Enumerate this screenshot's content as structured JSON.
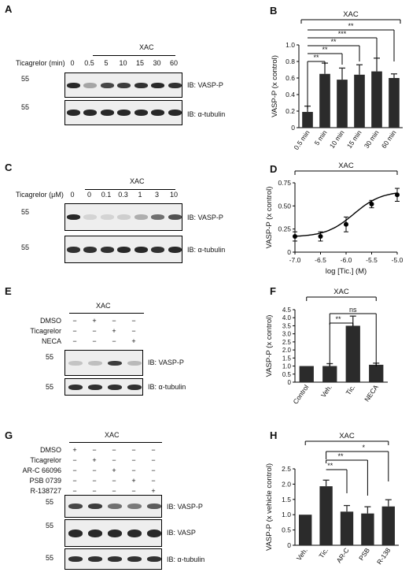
{
  "panelA": {
    "letter": "A",
    "treatment": "XAC",
    "row_label": "Ticagrelor (min)",
    "lanes": [
      "0",
      "0.5",
      "5",
      "10",
      "15",
      "30",
      "60"
    ],
    "mw": [
      "55",
      "55"
    ],
    "blots": [
      "IB: VASP-P",
      "IB: α-tubulin"
    ]
  },
  "panelC": {
    "letter": "C",
    "treatment": "XAC",
    "row_label": "Ticagrelor (μM)",
    "lanes": [
      "0",
      "0",
      "0.1",
      "0.3",
      "1",
      "3",
      "10"
    ],
    "mw": [
      "55",
      "55"
    ],
    "blots": [
      "IB: VASP-P",
      "IB: α-tubulin"
    ]
  },
  "panelE": {
    "letter": "E",
    "treatment": "XAC",
    "rows": [
      {
        "label": "DMSO",
        "signs": [
          "−",
          "+",
          "−",
          "−"
        ]
      },
      {
        "label": "Ticagrelor",
        "signs": [
          "−",
          "−",
          "+",
          "−"
        ]
      },
      {
        "label": "NECA",
        "signs": [
          "−",
          "−",
          "−",
          "+"
        ]
      }
    ],
    "mw": [
      "55",
      "55"
    ],
    "blots": [
      "IB: VASP-P",
      "IB: α-tubulin"
    ]
  },
  "panelG": {
    "letter": "G",
    "treatment": "XAC",
    "rows": [
      {
        "label": "DMSO",
        "signs": [
          "+",
          "−",
          "−",
          "−",
          "−"
        ]
      },
      {
        "label": "Ticagrelor",
        "signs": [
          "−",
          "+",
          "−",
          "−",
          "−"
        ]
      },
      {
        "label": "AR-C 66096",
        "signs": [
          "−",
          "−",
          "+",
          "−",
          "−"
        ]
      },
      {
        "label": "PSB 0739",
        "signs": [
          "−",
          "−",
          "−",
          "+",
          "−"
        ]
      },
      {
        "label": "R-138727",
        "signs": [
          "−",
          "−",
          "−",
          "−",
          "+"
        ]
      }
    ],
    "mw": [
      "55",
      "55",
      "55"
    ],
    "blots": [
      "IB: VASP-P",
      "IB: VASP",
      "IB: α-tubulin"
    ]
  },
  "chart_data": [
    {
      "panel": "B",
      "type": "bar",
      "treatment": "XAC",
      "categories": [
        "0.5 min",
        "5 min",
        "10 min",
        "15 min",
        "30 min",
        "60 min"
      ],
      "values": [
        0.19,
        0.65,
        0.58,
        0.64,
        0.68,
        0.6
      ],
      "errors": [
        0.07,
        0.13,
        0.14,
        0.12,
        0.16,
        0.05
      ],
      "ylabel": "VASP-P (x control)",
      "ylim": [
        0,
        1.0
      ],
      "yticks": [
        "0",
        "0.2",
        "0.4",
        "0.6",
        "0.8",
        "1.0"
      ],
      "significance": [
        "**",
        "**",
        "**",
        "***",
        "**"
      ]
    },
    {
      "panel": "D",
      "type": "line",
      "treatment": "XAC",
      "x": [
        -7.0,
        -6.5,
        -6.0,
        -5.5,
        -5.0
      ],
      "y": [
        0.17,
        0.17,
        0.3,
        0.52,
        0.62
      ],
      "errors": [
        0.05,
        0.05,
        0.08,
        0.04,
        0.07
      ],
      "xlabel": "log [Tic.] (M)",
      "ylabel": "VASP-P (x control)",
      "xlim": [
        -7.0,
        -5.0
      ],
      "ylim": [
        0,
        0.75
      ],
      "xticks": [
        "-7.0",
        "-6.5",
        "-6.0",
        "-5.5",
        "-5.0"
      ],
      "yticks": [
        "0",
        "0.25",
        "0.50",
        "0.75"
      ]
    },
    {
      "panel": "F",
      "type": "bar",
      "treatment": "XAC",
      "categories": [
        "Control",
        "Veh.",
        "Tic.",
        "NECA"
      ],
      "values": [
        1.0,
        1.0,
        3.5,
        1.08
      ],
      "errors": [
        0,
        0.15,
        0.6,
        0.1
      ],
      "ylabel": "VASP-P (x control)",
      "ylim": [
        0,
        4.5
      ],
      "yticks": [
        "0",
        "0.5",
        "1.0",
        "1.5",
        "2.0",
        "2.5",
        "3.0",
        "3.5",
        "4.0",
        "4.5"
      ],
      "significance": [
        "**",
        "ns"
      ]
    },
    {
      "panel": "H",
      "type": "bar",
      "treatment": "XAC",
      "categories": [
        "Veh.",
        "Tic.",
        "AR-C",
        "PSB",
        "R-138"
      ],
      "values": [
        1.0,
        1.93,
        1.1,
        1.04,
        1.27
      ],
      "errors": [
        0,
        0.2,
        0.2,
        0.22,
        0.22
      ],
      "ylabel": "VASP-P (x vehicle control)",
      "ylim": [
        0,
        2.5
      ],
      "yticks": [
        "0",
        "0.5",
        "1.0",
        "1.5",
        "2.0",
        "2.5"
      ],
      "significance": [
        "**",
        "**",
        "*"
      ]
    }
  ]
}
